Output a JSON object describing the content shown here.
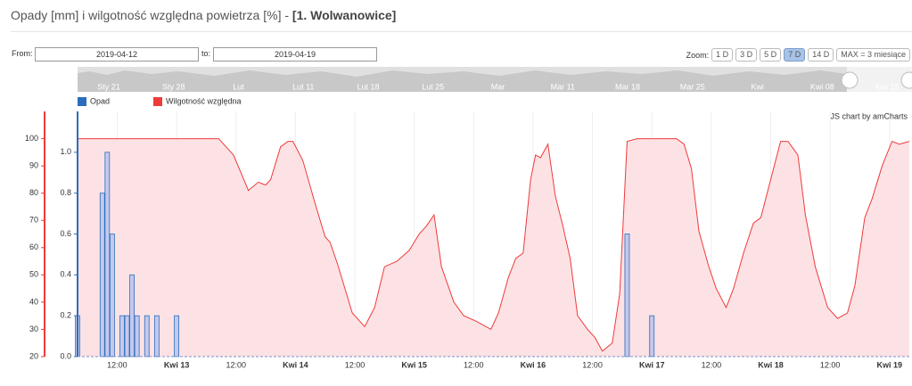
{
  "chart_data": {
    "type": "combo",
    "title": "Opady [mm] i wilgotność względna powietrza [%] -",
    "subtitle": "[1. Wolwanowice]",
    "credit": "JS chart by amCharts",
    "xlim": [
      "2019-04-12T04:00",
      "2019-04-19T04:00"
    ],
    "xticks": [
      {
        "value": "2019-04-12T12:00",
        "label": "12:00"
      },
      {
        "value": "2019-04-13T00:00",
        "label": "Kwi 13"
      },
      {
        "value": "2019-04-13T12:00",
        "label": "12:00"
      },
      {
        "value": "2019-04-14T00:00",
        "label": "Kwi 14"
      },
      {
        "value": "2019-04-14T12:00",
        "label": "12:00"
      },
      {
        "value": "2019-04-15T00:00",
        "label": "Kwi 15"
      },
      {
        "value": "2019-04-15T12:00",
        "label": "12:00"
      },
      {
        "value": "2019-04-16T00:00",
        "label": "Kwi 16"
      },
      {
        "value": "2019-04-16T12:00",
        "label": "12:00"
      },
      {
        "value": "2019-04-17T00:00",
        "label": "Kwi 17"
      },
      {
        "value": "2019-04-17T12:00",
        "label": "12:00"
      },
      {
        "value": "2019-04-18T00:00",
        "label": "Kwi 18"
      },
      {
        "value": "2019-04-18T12:00",
        "label": "12:00"
      },
      {
        "value": "2019-04-19T00:00",
        "label": "Kwi 19"
      }
    ],
    "ylim": [
      20,
      110
    ],
    "yticks": [
      20,
      30,
      40,
      50,
      60,
      70,
      80,
      90,
      100
    ],
    "y2lim": [
      0,
      1.2
    ],
    "y2ticks": [
      {
        "value": 0,
        "label": "0.0"
      },
      0.2,
      0.4,
      0.6,
      0.8,
      {
        "value": 1,
        "label": "1.0"
      }
    ],
    "series": [
      {
        "name": "Opad",
        "type": "bar",
        "axis": "y2",
        "color": "#2a6ebb",
        "fill": "#c5c8ec",
        "x": [
          "2019-04-12T04:00",
          "2019-04-12T09:00",
          "2019-04-12T10:00",
          "2019-04-12T11:00",
          "2019-04-12T13:00",
          "2019-04-12T14:00",
          "2019-04-12T15:00",
          "2019-04-12T16:00",
          "2019-04-12T18:00",
          "2019-04-12T20:00",
          "2019-04-13T00:00",
          "2019-04-16T19:00",
          "2019-04-17T00:00"
        ],
        "values": [
          0.2,
          0.8,
          1.0,
          0.6,
          0.2,
          0.2,
          0.4,
          0.2,
          0.2,
          0.2,
          0.2,
          0.6,
          0.2
        ]
      },
      {
        "name": "Wilgotność względna",
        "type": "line",
        "axis": "y",
        "color": "#ee3a3a",
        "fill": "#fde2e5",
        "x": [
          "2019-04-12T04:00",
          "2019-04-13T08:30",
          "2019-04-13T11:30",
          "2019-04-13T14:30",
          "2019-04-13T16:30",
          "2019-04-13T18:00",
          "2019-04-13T19:00",
          "2019-04-13T21:00",
          "2019-04-13T22:30",
          "2019-04-13T23:30",
          "2019-04-14T01:30",
          "2019-04-14T04:00",
          "2019-04-14T06:00",
          "2019-04-14T07:00",
          "2019-04-14T08:30",
          "2019-04-14T11:30",
          "2019-04-14T14:00",
          "2019-04-14T16:00",
          "2019-04-14T18:00",
          "2019-04-14T20:30",
          "2019-04-14T23:00",
          "2019-04-15T01:00",
          "2019-04-15T02:30",
          "2019-04-15T04:00",
          "2019-04-15T05:30",
          "2019-04-15T08:00",
          "2019-04-15T10:00",
          "2019-04-15T12:30",
          "2019-04-15T15:30",
          "2019-04-15T17:00",
          "2019-04-15T19:00",
          "2019-04-15T20:30",
          "2019-04-15T22:00",
          "2019-04-15T23:30",
          "2019-04-16T00:30",
          "2019-04-16T01:30",
          "2019-04-16T03:00",
          "2019-04-16T04:30",
          "2019-04-16T06:00",
          "2019-04-16T07:30",
          "2019-04-16T09:00",
          "2019-04-16T11:00",
          "2019-04-16T12:30",
          "2019-04-16T14:00",
          "2019-04-16T16:00",
          "2019-04-16T17:30",
          "2019-04-16T19:00",
          "2019-04-16T21:00",
          "2019-04-17T05:00",
          "2019-04-17T06:30",
          "2019-04-17T08:00",
          "2019-04-17T09:30",
          "2019-04-17T11:30",
          "2019-04-17T13:00",
          "2019-04-17T15:00",
          "2019-04-17T16:30",
          "2019-04-17T18:30",
          "2019-04-17T20:30",
          "2019-04-17T22:00",
          "2019-04-18T00:00",
          "2019-04-18T02:00",
          "2019-04-18T03:30",
          "2019-04-18T05:30",
          "2019-04-18T07:00",
          "2019-04-18T09:00",
          "2019-04-18T11:30",
          "2019-04-18T13:30",
          "2019-04-18T15:30",
          "2019-04-18T17:00",
          "2019-04-18T19:00",
          "2019-04-18T20:30",
          "2019-04-18T22:30",
          "2019-04-19T00:30",
          "2019-04-19T02:00",
          "2019-04-19T04:00"
        ],
        "values": [
          100,
          100,
          94,
          81,
          84,
          83,
          85,
          97,
          99,
          99,
          92,
          76,
          64,
          62,
          54,
          36,
          31,
          38,
          53,
          55,
          59,
          65,
          68,
          72,
          53,
          40,
          35,
          33,
          30,
          36,
          49,
          56,
          58,
          85,
          94,
          93,
          98,
          79,
          68,
          56,
          35,
          30,
          27,
          22,
          25,
          43,
          99,
          100,
          100,
          98,
          89,
          66,
          53,
          45,
          38,
          45,
          58,
          69,
          71,
          85,
          99,
          99,
          94,
          72,
          53,
          38,
          34,
          36,
          46,
          71,
          78,
          90,
          99,
          98,
          99
        ]
      }
    ]
  },
  "ui": {
    "from_label": "From:",
    "from": "2019-04-12",
    "to_label": "to:",
    "to": "2019-04-19",
    "zoom_label": "Zoom:",
    "zoom": [
      "1 D",
      "3 D",
      "5 D",
      "7 D",
      "14 D",
      "MAX = 3 miesiące"
    ],
    "zoom_active": 3,
    "scrollbar_labels": [
      "Sty 21",
      "Sty 28",
      "Lut",
      "Lut 11",
      "Lut 18",
      "Lut 25",
      "Mar",
      "Mar 11",
      "Mar 18",
      "Mar 25",
      "Kwi",
      "Kwi 08",
      "Kwi 15"
    ]
  }
}
